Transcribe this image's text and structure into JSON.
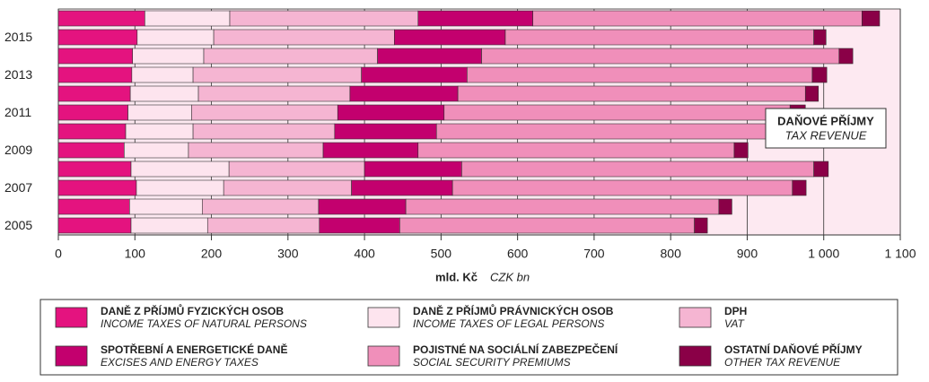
{
  "chart_data": {
    "type": "stacked-bar-horizontal",
    "categories": [
      null,
      "2015",
      null,
      "2013",
      null,
      "2011",
      null,
      "2009",
      null,
      "2007",
      null,
      "2005"
    ],
    "series": [
      {
        "name": "DANĚ Z PŘÍJMŮ FYZICKÝCH OSOB",
        "name_en": "INCOME TAXES OF NATURAL PERSONS",
        "color": "#e4137f",
        "values": [
          113,
          103,
          97,
          96,
          94,
          91,
          88,
          86,
          95,
          102,
          93,
          95
        ]
      },
      {
        "name": "DANĚ Z PŘÍJMŮ PRÁVNICKÝCH OSOB",
        "name_en": "INCOME TAXES OF LEGAL PERSONS",
        "color": "#fde4ee",
        "values": [
          111,
          100,
          93,
          80,
          89,
          83,
          88,
          84,
          128,
          114,
          95,
          100
        ]
      },
      {
        "name": "DPH",
        "name_en": "VAT",
        "color": "#f5b5d2",
        "values": [
          246,
          236,
          227,
          220,
          198,
          191,
          185,
          176,
          177,
          167,
          152,
          146
        ]
      },
      {
        "name": "SPOTŘEBNÍ A ENERGETICKÉ DANĚ",
        "name_en": "EXCISES AND ENERGY TAXES",
        "color": "#c3006e",
        "values": [
          150,
          145,
          136,
          138,
          141,
          139,
          133,
          124,
          127,
          132,
          114,
          105
        ]
      },
      {
        "name": "POJISTNÉ NA SOCIÁLNÍ ZABEZPEČENÍ",
        "name_en": "SOCIAL SECURITY PREMIUMS",
        "color": "#f08fba",
        "values": [
          430,
          403,
          467,
          451,
          454,
          452,
          435,
          413,
          460,
          444,
          409,
          385
        ]
      },
      {
        "name": "OSTATNÍ DAŇOVÉ PŘÍJMY",
        "name_en": "OTHER TAX REVENUE",
        "color": "#8a0047",
        "values": [
          23,
          16,
          18,
          19,
          17,
          20,
          21,
          18,
          19,
          18,
          17,
          17
        ]
      }
    ],
    "xlim": [
      0,
      1100
    ],
    "xticks": [
      0,
      100,
      200,
      300,
      400,
      500,
      600,
      700,
      800,
      900,
      {
        "value": 1000,
        "label": "1 000"
      },
      {
        "value": 1100,
        "label": "1 100"
      }
    ],
    "xlabel": "mld. Kč",
    "xlabel_en": "CZK bn",
    "annotation": "DAŇOVÉ PŘÍJMY",
    "annotation_en": "TAX REVENUE",
    "background": "#fde9f1",
    "grid": true
  }
}
